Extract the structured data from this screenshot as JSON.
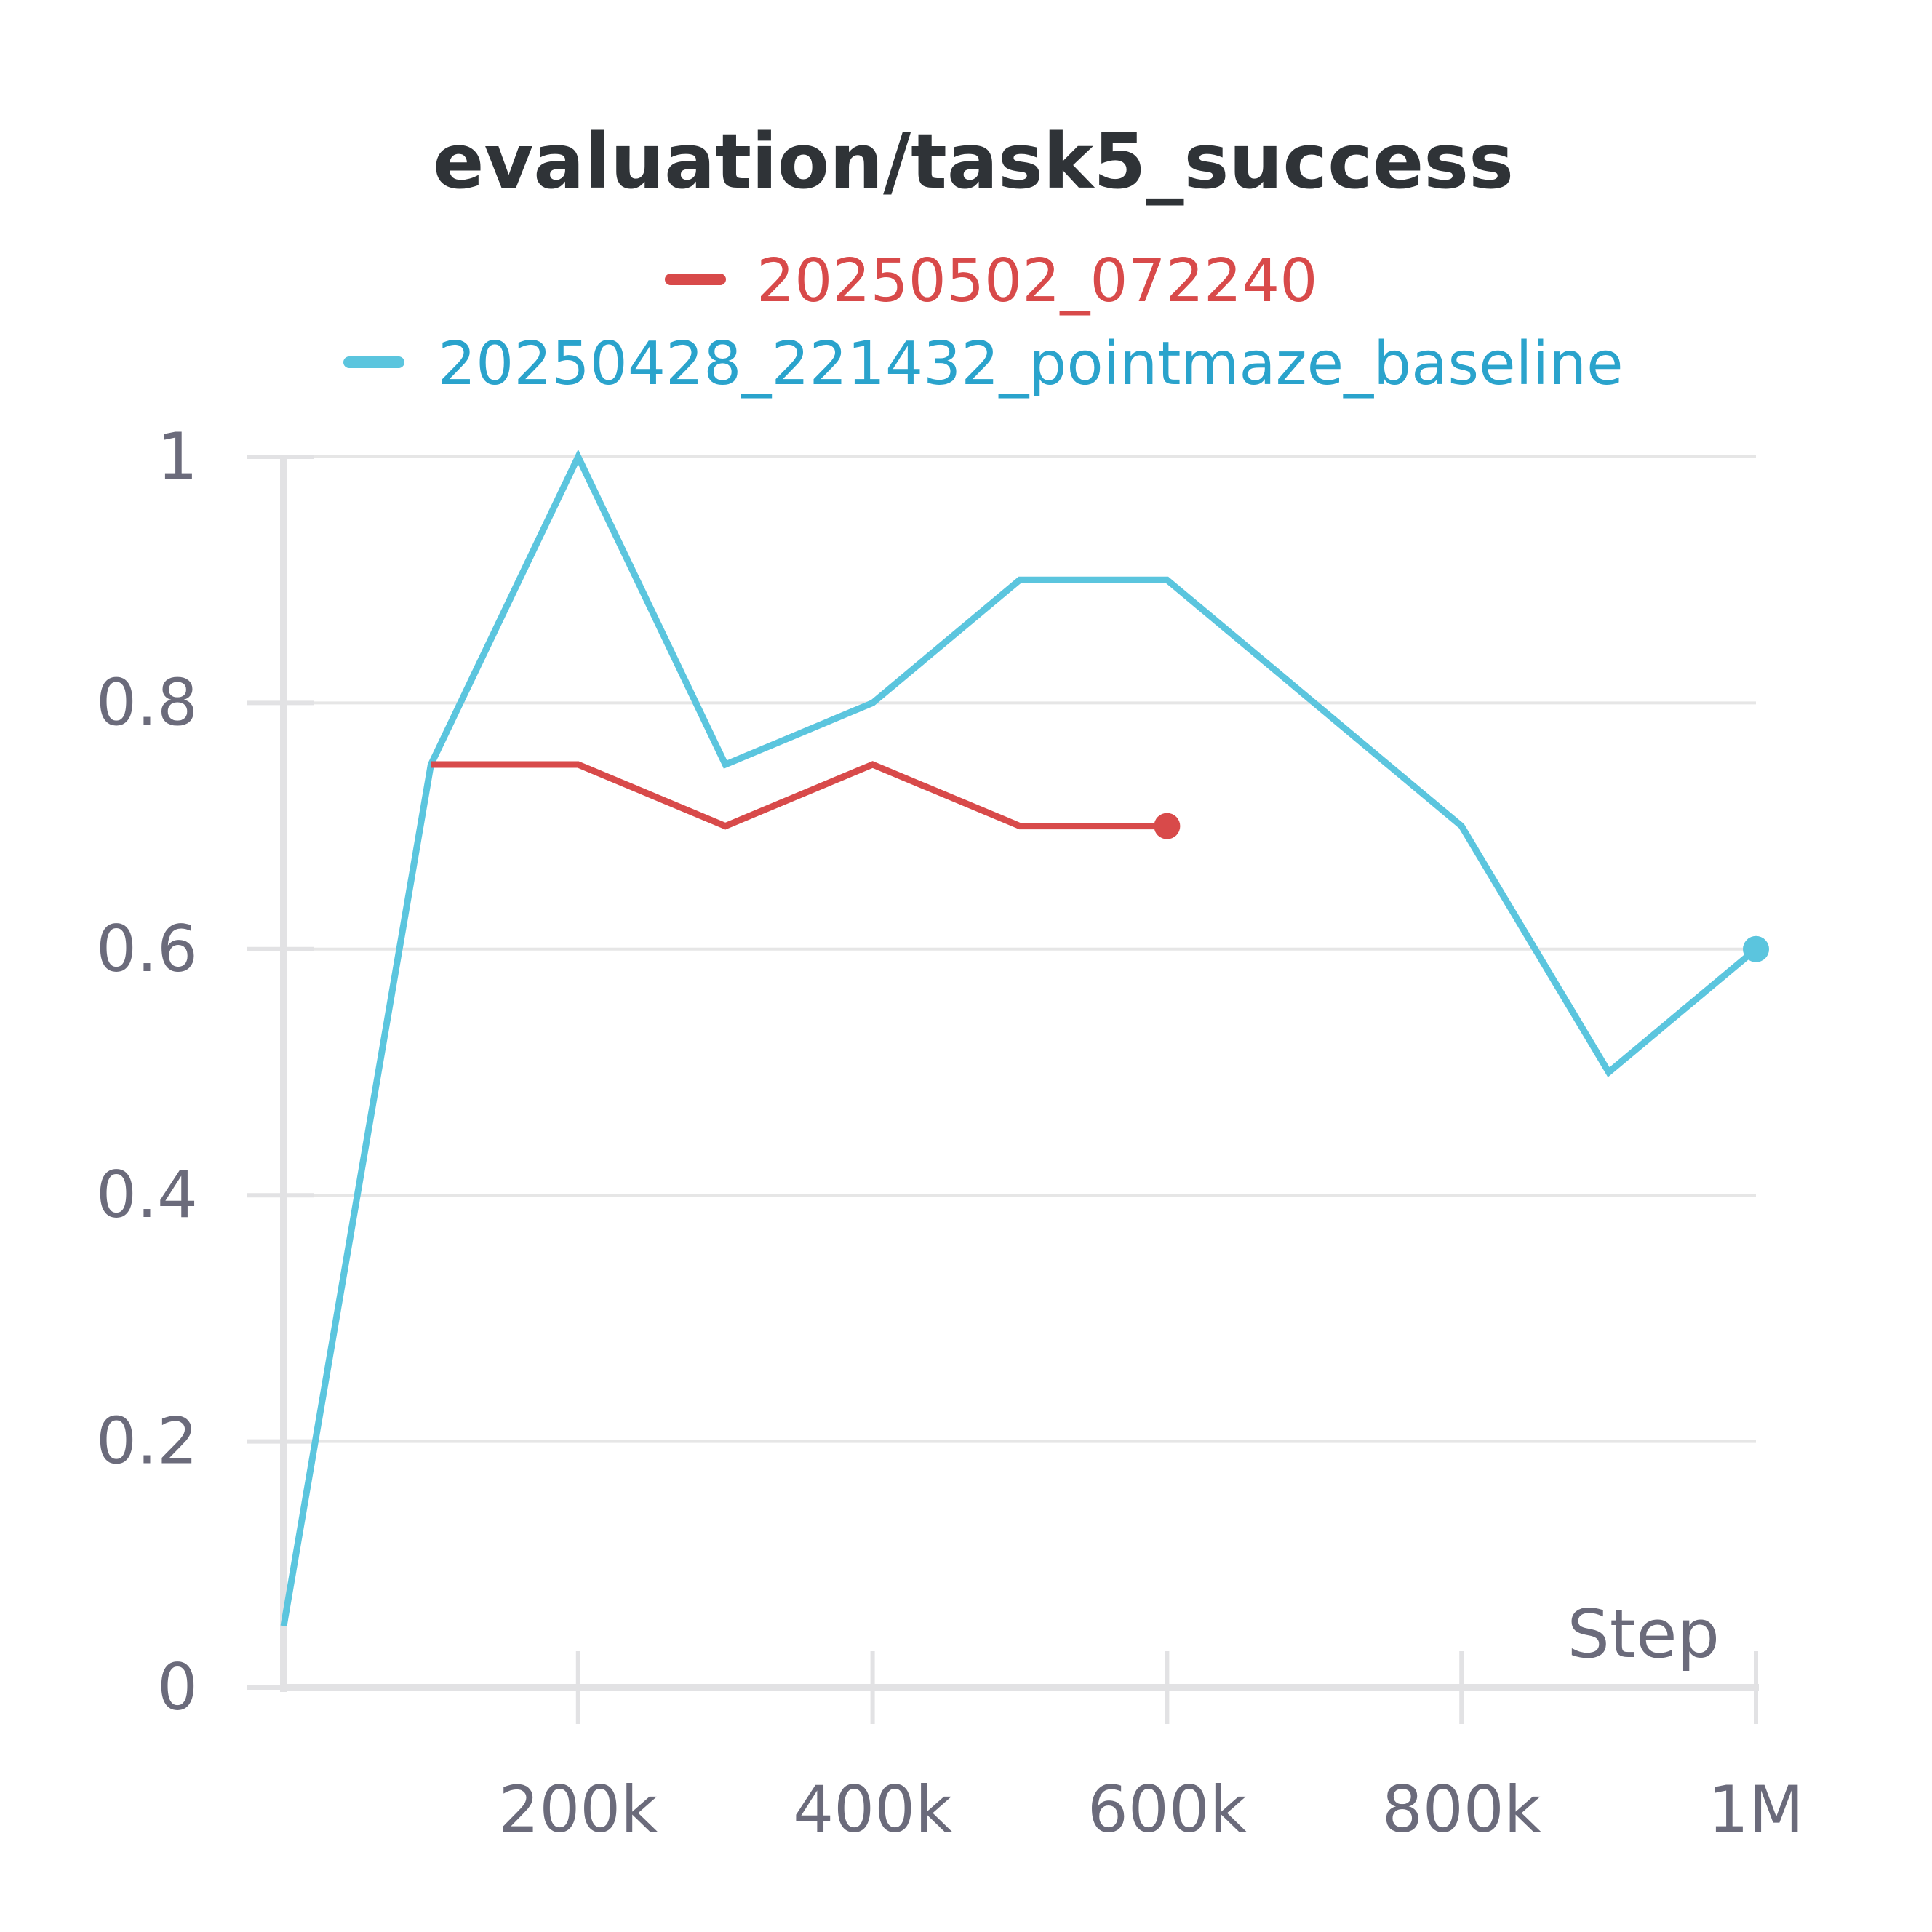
{
  "chart_data": {
    "type": "line",
    "title": "evaluation/task5_success",
    "xlabel": "Step",
    "ylabel": "",
    "xlim": [
      0,
      1000000
    ],
    "ylim": [
      0,
      1
    ],
    "x_ticks": [
      {
        "value": 200000,
        "label": "200k"
      },
      {
        "value": 400000,
        "label": "400k"
      },
      {
        "value": 600000,
        "label": "600k"
      },
      {
        "value": 800000,
        "label": "800k"
      },
      {
        "value": 1000000,
        "label": "1M"
      }
    ],
    "y_ticks": [
      {
        "value": 0,
        "label": "0"
      },
      {
        "value": 0.2,
        "label": "0.2"
      },
      {
        "value": 0.4,
        "label": "0.4"
      },
      {
        "value": 0.6,
        "label": "0.6"
      },
      {
        "value": 0.8,
        "label": "0.8"
      },
      {
        "value": 1,
        "label": "1"
      }
    ],
    "grid": true,
    "legend_position": "top",
    "series": [
      {
        "name": "20250502_072240",
        "color": "#d84a4a",
        "x": [
          100000,
          200000,
          300000,
          400000,
          500000,
          600000
        ],
        "values": [
          0.75,
          0.75,
          0.7,
          0.75,
          0.7,
          0.7
        ]
      },
      {
        "name": "20250428_221432_pointmaze_baseline",
        "color": "#5bc5de",
        "x": [
          0,
          100000,
          200000,
          300000,
          400000,
          500000,
          600000,
          700000,
          800000,
          900000,
          1000000
        ],
        "values": [
          0.05,
          0.75,
          1.0,
          0.75,
          0.8,
          0.9,
          0.9,
          0.8,
          0.7,
          0.5,
          0.6
        ]
      }
    ]
  },
  "legend": {
    "entries": [
      {
        "label": "20250502_072240",
        "swatch_color": "#d84a4a",
        "text_color": "#d84a4a"
      },
      {
        "label": "20250428_221432_pointmaze_baseline",
        "swatch_color": "#5bc5de",
        "text_color": "#2aa3cc"
      }
    ]
  },
  "colors": {
    "title": "#2f3337",
    "tick_text": "#6b6b7b",
    "grid": "#e6e6e6",
    "axis": "#e2e2e4"
  }
}
